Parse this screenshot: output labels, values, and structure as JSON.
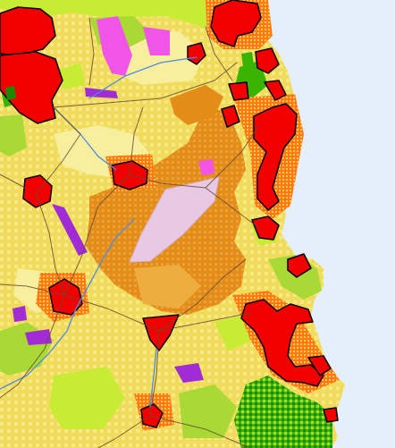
{
  "map": {
    "kind": "land-use raster map",
    "legend_visible": false,
    "palette": {
      "sea": "#e4effa",
      "agricultural_yellow": "#f1dc57",
      "agricultural_light": "#f6e886",
      "pale_yellow": "#f7ef9e",
      "orange_mixed": "#e38c17",
      "light_orange": "#eeae3f",
      "urban_red": "#f20000",
      "urban_fringe_orange": "#ff7a16",
      "industrial_pink": "#f055e8",
      "industrial_purple": "#a12bd4",
      "airport_lilac": "#e8c9e3",
      "grassland_green": "#a9d934",
      "lime_green": "#c8ec34",
      "forest_green": "#39b400",
      "dark_forest": "#1c8a00",
      "roads": "#6c4a33",
      "rivers": "#4f8ce0",
      "boundary": "#000000"
    },
    "legend_items": [
      {
        "category": "urban",
        "color": "#f20000"
      },
      {
        "category": "industrial",
        "color": "#a12bd4"
      },
      {
        "category": "airport",
        "color": "#e8c9e3"
      },
      {
        "category": "agricultural",
        "color": "#f1dc57"
      },
      {
        "category": "mixed-agricultural",
        "color": "#e38c17"
      },
      {
        "category": "grassland",
        "color": "#a9d934"
      },
      {
        "category": "forest",
        "color": "#39b400"
      },
      {
        "category": "water",
        "color": "#e4effa"
      }
    ]
  }
}
